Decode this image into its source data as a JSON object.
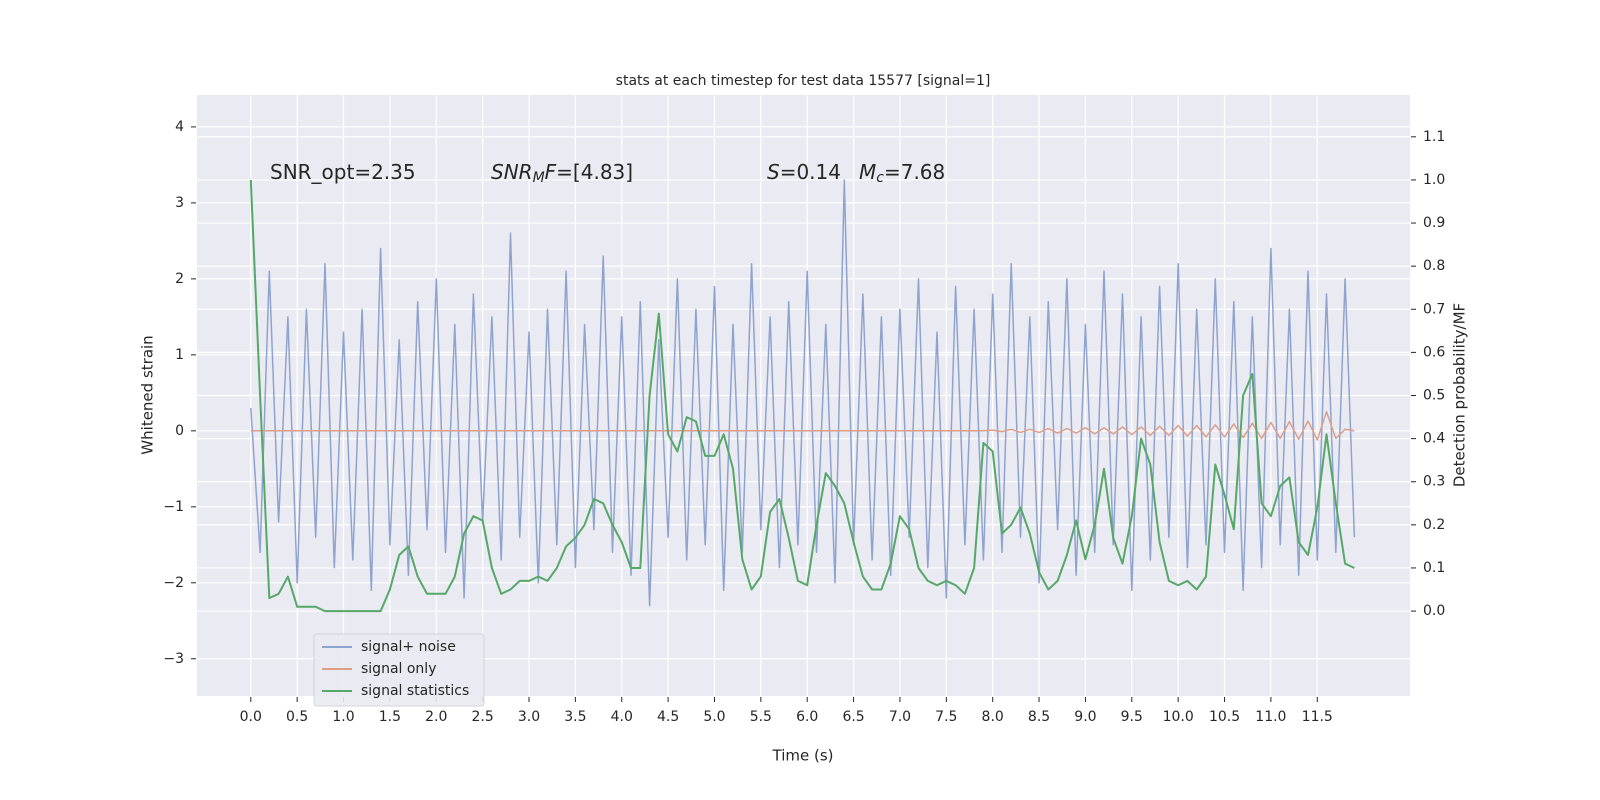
{
  "chart_data": {
    "type": "line",
    "title": "stats at each timestep for test data 15577 [signal=1]",
    "xlabel": "Time (s)",
    "ylabel": "Whitened strain",
    "y2label": "Detection probability/MF",
    "xlim": [
      -0.58,
      12.5
    ],
    "ylim": [
      -3.49,
      4.42
    ],
    "y2lim": [
      -0.197,
      1.197
    ],
    "xticks": [
      {
        "value": 0,
        "label": "0.0"
      },
      {
        "value": 0.5,
        "label": "0.5"
      },
      {
        "value": 1,
        "label": "1.0"
      },
      {
        "value": 1.5,
        "label": "1.5"
      },
      {
        "value": 2,
        "label": "2.0"
      },
      {
        "value": 2.5,
        "label": "2.5"
      },
      {
        "value": 3,
        "label": "3.0"
      },
      {
        "value": 3.5,
        "label": "3.5"
      },
      {
        "value": 4,
        "label": "4.0"
      },
      {
        "value": 4.5,
        "label": "4.5"
      },
      {
        "value": 5,
        "label": "5.0"
      },
      {
        "value": 5.5,
        "label": "5.5"
      },
      {
        "value": 6,
        "label": "6.0"
      },
      {
        "value": 6.5,
        "label": "6.5"
      },
      {
        "value": 7,
        "label": "7.0"
      },
      {
        "value": 7.5,
        "label": "7.5"
      },
      {
        "value": 8,
        "label": "8.0"
      },
      {
        "value": 8.5,
        "label": "8.5"
      },
      {
        "value": 9,
        "label": "9.0"
      },
      {
        "value": 9.5,
        "label": "9.5"
      },
      {
        "value": 10,
        "label": "10.0"
      },
      {
        "value": 10.5,
        "label": "10.5"
      },
      {
        "value": 11,
        "label": "11.0"
      },
      {
        "value": 11.5,
        "label": "11.5"
      }
    ],
    "yticks": [
      {
        "value": -3,
        "label": "−3"
      },
      {
        "value": -2,
        "label": "−2"
      },
      {
        "value": -1,
        "label": "−1"
      },
      0,
      1,
      2,
      3,
      4
    ],
    "y2ticks": [
      {
        "value": 0,
        "label": "0.0"
      },
      {
        "value": 0.1,
        "label": "0.1"
      },
      {
        "value": 0.2,
        "label": "0.2"
      },
      {
        "value": 0.3,
        "label": "0.3"
      },
      {
        "value": 0.4,
        "label": "0.4"
      },
      {
        "value": 0.5,
        "label": "0.5"
      },
      {
        "value": 0.6,
        "label": "0.6"
      },
      {
        "value": 0.7,
        "label": "0.7"
      },
      {
        "value": 0.8,
        "label": "0.8"
      },
      {
        "value": 0.9,
        "label": "0.9"
      },
      {
        "value": 1,
        "label": "1.0"
      },
      {
        "value": 1.1,
        "label": "1.1"
      }
    ],
    "grid": true,
    "legend_loc": "lower left",
    "annotations": [
      {
        "parts": [
          {
            "text": "SNR_opt=2.35"
          }
        ]
      },
      {
        "parts": [
          {
            "text": "SNR",
            "italic": true
          },
          {
            "text": "M",
            "italic": true,
            "sub": true
          },
          {
            "text": "F",
            "italic": true
          },
          {
            "text": "=[4.83]"
          }
        ]
      },
      {
        "parts": [
          {
            "text": "S",
            "italic": true
          },
          {
            "text": "=0.14"
          }
        ]
      },
      {
        "parts": [
          {
            "text": "M",
            "italic": true
          },
          {
            "text": "c",
            "italic": true,
            "sub": true
          },
          {
            "text": "=7.68"
          }
        ]
      }
    ],
    "x": [
      0,
      0.1,
      0.2,
      0.3,
      0.4,
      0.5,
      0.6,
      0.7,
      0.8,
      0.9,
      1,
      1.1,
      1.2,
      1.3,
      1.4,
      1.5,
      1.6,
      1.7,
      1.8,
      1.9,
      2,
      2.1,
      2.2,
      2.3,
      2.4,
      2.5,
      2.6,
      2.7,
      2.8,
      2.9,
      3,
      3.1,
      3.2,
      3.3,
      3.4,
      3.5,
      3.6,
      3.7,
      3.8,
      3.9,
      4,
      4.1,
      4.2,
      4.3,
      4.4,
      4.5,
      4.6,
      4.7,
      4.8,
      4.9,
      5,
      5.1,
      5.2,
      5.3,
      5.4,
      5.5,
      5.6,
      5.7,
      5.8,
      5.9,
      6,
      6.1,
      6.2,
      6.3,
      6.4,
      6.5,
      6.6,
      6.7,
      6.8,
      6.9,
      7,
      7.1,
      7.2,
      7.3,
      7.4,
      7.5,
      7.6,
      7.7,
      7.8,
      7.9,
      8,
      8.1,
      8.2,
      8.3,
      8.4,
      8.5,
      8.6,
      8.7,
      8.8,
      8.9,
      9,
      9.1,
      9.2,
      9.3,
      9.4,
      9.5,
      9.6,
      9.7,
      9.8,
      9.9,
      10,
      10.1,
      10.2,
      10.3,
      10.4,
      10.5,
      10.6,
      10.7,
      10.8,
      10.9,
      11,
      11.1,
      11.2,
      11.3,
      11.4,
      11.5,
      11.6,
      11.7,
      11.8,
      11.9
    ],
    "series": [
      {
        "name": "signal+ noise",
        "color": "#8fa3cf",
        "values": [
          0.3,
          -1.6,
          2.1,
          -1.2,
          1.5,
          -2.0,
          1.6,
          -1.4,
          2.2,
          -1.8,
          1.3,
          -1.7,
          1.6,
          -2.1,
          2.4,
          -1.5,
          1.2,
          -1.9,
          1.7,
          -1.3,
          2.0,
          -1.6,
          1.4,
          -2.2,
          1.8,
          -1.2,
          1.5,
          -1.7,
          2.6,
          -1.4,
          1.3,
          -2.0,
          1.6,
          -1.5,
          2.1,
          -1.8,
          1.4,
          -1.3,
          2.3,
          -1.6,
          1.5,
          -1.9,
          1.7,
          -2.3,
          1.2,
          -1.4,
          2.0,
          -1.7,
          1.6,
          -1.5,
          1.9,
          -2.1,
          1.4,
          -1.6,
          2.2,
          -1.3,
          1.5,
          -1.8,
          1.7,
          -1.5,
          2.1,
          -1.6,
          1.4,
          -2.0,
          3.3,
          -1.5,
          1.8,
          -1.7,
          1.5,
          -1.9,
          1.6,
          -1.4,
          2.0,
          -1.8,
          1.3,
          -2.2,
          1.9,
          -1.5,
          1.6,
          -1.7,
          1.8,
          -1.6,
          2.2,
          -1.4,
          1.5,
          -2.0,
          1.7,
          -1.3,
          2.0,
          -1.9,
          1.4,
          -1.6,
          2.1,
          -1.5,
          1.8,
          -2.1,
          1.5,
          -1.7,
          1.9,
          -1.4,
          2.2,
          -1.8,
          1.6,
          -1.5,
          2.0,
          -1.6,
          1.7,
          -2.1,
          1.5,
          -1.8,
          2.4,
          -1.5,
          1.6,
          -1.9,
          2.1,
          -1.7,
          1.8,
          -1.6,
          2.0,
          -1.4
        ]
      },
      {
        "name": "signal only",
        "color": "#dd9f8a",
        "values": [
          0,
          0,
          0,
          0,
          0,
          0,
          0,
          0,
          0,
          0,
          0,
          0,
          0,
          0,
          0,
          0,
          0,
          0,
          0,
          0,
          0,
          0,
          0,
          0,
          0,
          0,
          0,
          0,
          0,
          0,
          0,
          0,
          0,
          0,
          0,
          0,
          0,
          0,
          0,
          0,
          0,
          0,
          0,
          0,
          0,
          0,
          0,
          0,
          0,
          0,
          0,
          0,
          0,
          0,
          0,
          0,
          0,
          0,
          0,
          0,
          0,
          0,
          0,
          0,
          0,
          0,
          0,
          0,
          0,
          0,
          0,
          0,
          0,
          0,
          0,
          0,
          0,
          0,
          0,
          0,
          0.01,
          -0.01,
          0.02,
          -0.02,
          0.02,
          -0.02,
          0.03,
          -0.03,
          0.03,
          -0.03,
          0.04,
          -0.04,
          0.04,
          -0.04,
          0.05,
          -0.05,
          0.05,
          -0.06,
          0.06,
          -0.06,
          0.07,
          -0.07,
          0.07,
          -0.08,
          0.08,
          -0.08,
          0.09,
          -0.09,
          0.1,
          -0.1,
          0.11,
          -0.1,
          0.12,
          -0.11,
          0.13,
          -0.12,
          0.25,
          -0.1,
          0.02,
          0.0
        ]
      },
      {
        "name": "signal statistics",
        "color": "#55a868",
        "axis": "y2",
        "values": [
          1.0,
          0.5,
          0.03,
          0.04,
          0.08,
          0.01,
          0.01,
          0.01,
          0.0,
          0.0,
          0.0,
          0.0,
          0.0,
          0.0,
          0.0,
          0.05,
          0.13,
          0.15,
          0.08,
          0.04,
          0.04,
          0.04,
          0.08,
          0.18,
          0.22,
          0.21,
          0.1,
          0.04,
          0.05,
          0.07,
          0.07,
          0.08,
          0.07,
          0.1,
          0.15,
          0.17,
          0.2,
          0.26,
          0.25,
          0.2,
          0.16,
          0.1,
          0.1,
          0.5,
          0.69,
          0.41,
          0.37,
          0.45,
          0.44,
          0.36,
          0.36,
          0.41,
          0.33,
          0.12,
          0.05,
          0.08,
          0.23,
          0.26,
          0.17,
          0.07,
          0.06,
          0.2,
          0.32,
          0.29,
          0.25,
          0.16,
          0.08,
          0.05,
          0.05,
          0.11,
          0.22,
          0.19,
          0.1,
          0.07,
          0.06,
          0.07,
          0.06,
          0.04,
          0.1,
          0.39,
          0.37,
          0.18,
          0.2,
          0.24,
          0.18,
          0.09,
          0.05,
          0.07,
          0.13,
          0.21,
          0.12,
          0.2,
          0.33,
          0.17,
          0.11,
          0.22,
          0.4,
          0.34,
          0.16,
          0.07,
          0.06,
          0.07,
          0.05,
          0.08,
          0.34,
          0.27,
          0.19,
          0.5,
          0.55,
          0.25,
          0.22,
          0.29,
          0.31,
          0.16,
          0.13,
          0.24,
          0.41,
          0.25,
          0.11,
          0.1
        ]
      }
    ]
  }
}
